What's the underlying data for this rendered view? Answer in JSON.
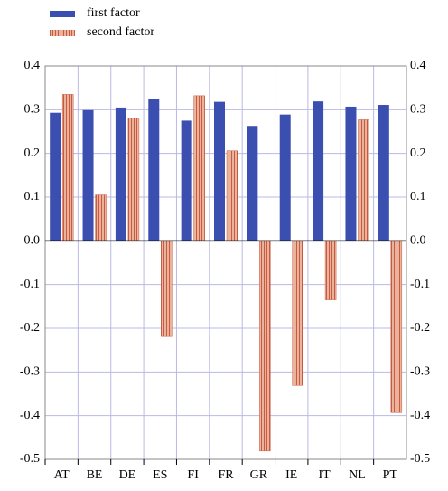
{
  "chart_data": {
    "type": "bar",
    "categories": [
      "AT",
      "BE",
      "DE",
      "ES",
      "FI",
      "FR",
      "GR",
      "IE",
      "IT",
      "NL",
      "PT"
    ],
    "series": [
      {
        "name": "first factor",
        "color": "#3a4fb0",
        "values": [
          0.293,
          0.299,
          0.305,
          0.324,
          0.275,
          0.318,
          0.263,
          0.289,
          0.319,
          0.307,
          0.311
        ]
      },
      {
        "name": "second factor",
        "color": "#e9a88c",
        "values": [
          0.335,
          0.105,
          0.281,
          -0.219,
          0.332,
          0.206,
          -0.481,
          -0.331,
          -0.135,
          0.277,
          -0.393
        ]
      }
    ],
    "ylim": [
      -0.5,
      0.4
    ],
    "yticks": [
      -0.5,
      -0.4,
      -0.3,
      -0.2,
      -0.1,
      {
        "value": 0,
        "label": "0.0"
      },
      0.1,
      0.2,
      0.3,
      0.4
    ],
    "grid": true,
    "legend": "top-left"
  }
}
